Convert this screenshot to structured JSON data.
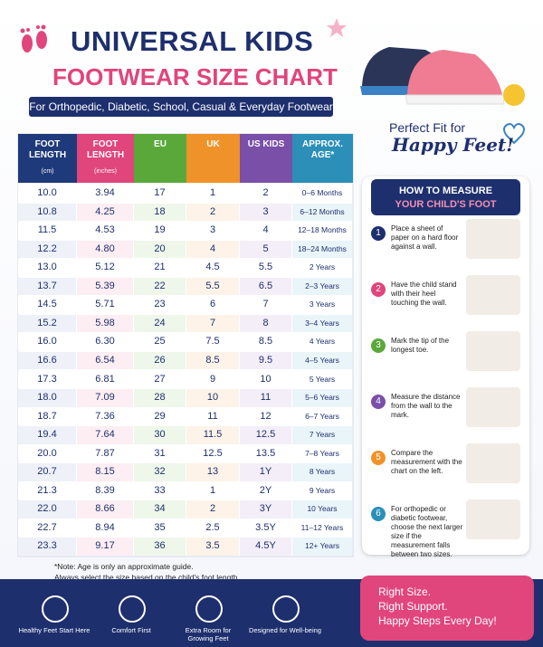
{
  "header": {
    "title_line1": "UNIVERSAL KIDS",
    "title_line2": "FOOTWEAR SIZE CHART",
    "subtitle": "For Orthopedic, Diabetic, School, Casual & Everyday Footwear"
  },
  "tagline": {
    "line1": "Perfect Fit for",
    "line2": "Happy Feet!"
  },
  "table": {
    "headers": [
      {
        "label": "FOOT LENGTH",
        "unit": "(cm)"
      },
      {
        "label": "FOOT LENGTH",
        "unit": "(inches)"
      },
      {
        "label": "EU"
      },
      {
        "label": "UK"
      },
      {
        "label": "US KIDS"
      },
      {
        "label": "APPROX. AGE*"
      }
    ],
    "rows": [
      [
        "10.0",
        "3.94",
        "17",
        "1",
        "2",
        "0–6 Months"
      ],
      [
        "10.8",
        "4.25",
        "18",
        "2",
        "3",
        "6–12 Months"
      ],
      [
        "11.5",
        "4.53",
        "19",
        "3",
        "4",
        "12–18 Months"
      ],
      [
        "12.2",
        "4.80",
        "20",
        "4",
        "5",
        "18–24 Months"
      ],
      [
        "13.0",
        "5.12",
        "21",
        "4.5",
        "5.5",
        "2 Years"
      ],
      [
        "13.7",
        "5.39",
        "22",
        "5.5",
        "6.5",
        "2–3 Years"
      ],
      [
        "14.5",
        "5.71",
        "23",
        "6",
        "7",
        "3 Years"
      ],
      [
        "15.2",
        "5.98",
        "24",
        "7",
        "8",
        "3–4 Years"
      ],
      [
        "16.0",
        "6.30",
        "25",
        "7.5",
        "8.5",
        "4 Years"
      ],
      [
        "16.6",
        "6.54",
        "26",
        "8.5",
        "9.5",
        "4–5 Years"
      ],
      [
        "17.3",
        "6.81",
        "27",
        "9",
        "10",
        "5 Years"
      ],
      [
        "18.0",
        "7.09",
        "28",
        "10",
        "11",
        "5–6 Years"
      ],
      [
        "18.7",
        "7.36",
        "29",
        "11",
        "12",
        "6–7 Years"
      ],
      [
        "19.4",
        "7.64",
        "30",
        "11.5",
        "12.5",
        "7 Years"
      ],
      [
        "20.0",
        "7.87",
        "31",
        "12.5",
        "13.5",
        "7–8 Years"
      ],
      [
        "20.7",
        "8.15",
        "32",
        "13",
        "1Y",
        "8 Years"
      ],
      [
        "21.3",
        "8.39",
        "33",
        "1",
        "2Y",
        "9 Years"
      ],
      [
        "22.0",
        "8.66",
        "34",
        "2",
        "3Y",
        "10 Years"
      ],
      [
        "22.7",
        "8.94",
        "35",
        "2.5",
        "3.5Y",
        "11–12 Years"
      ],
      [
        "23.3",
        "9.17",
        "36",
        "3.5",
        "4.5Y",
        "12+ Years"
      ]
    ]
  },
  "measure": {
    "title_line1": "HOW TO MEASURE",
    "title_line2": "YOUR CHILD'S FOOT",
    "steps": [
      {
        "number": "1",
        "text": "Place a sheet of paper on a hard floor against a wall."
      },
      {
        "number": "2",
        "text": "Have the child stand with their heel touching the wall."
      },
      {
        "number": "3",
        "text": "Mark the tip of the longest toe."
      },
      {
        "number": "4",
        "text": "Measure the distance from the wall to the mark."
      },
      {
        "number": "5",
        "text": "Compare the measurement with the chart on the left."
      },
      {
        "number": "6",
        "text": "For orthopedic or diabetic footwear, choose the next larger size if the measurement falls between two sizes."
      }
    ]
  },
  "note": {
    "line1": "*Note: Age is only an approximate guide.",
    "line2": "Always select the size based on the child's foot length."
  },
  "features": [
    "Healthy Feet Start Here",
    "Comfort First",
    "Extra Room for Growing Feet",
    "Designed for Well-being"
  ],
  "promo": {
    "line1": "Right Size.",
    "line2": "Right Support.",
    "line3": "Happy Steps Every Day!"
  }
}
